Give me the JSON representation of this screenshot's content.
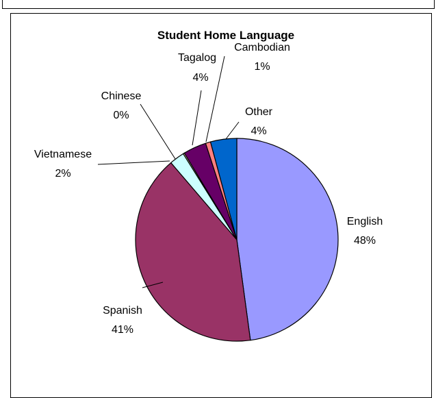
{
  "chart_data": {
    "type": "pie",
    "title": "Student Home Language",
    "slices": [
      {
        "name": "English",
        "label": "48%",
        "value": 48,
        "color": "#9999FF"
      },
      {
        "name": "Spanish",
        "label": "41%",
        "value": 41,
        "color": "#993366"
      },
      {
        "name": "Vietnamese",
        "label": "2%",
        "value": 2.4,
        "color": "#CCFFFF"
      },
      {
        "name": "Chinese",
        "label": "0%",
        "value": 0.2,
        "color": "#FFFFCC"
      },
      {
        "name": "Tagalog",
        "label": "4%",
        "value": 3.7,
        "color": "#660066"
      },
      {
        "name": "Cambodian",
        "label": "1%",
        "value": 0.8,
        "color": "#FF8080"
      },
      {
        "name": "Other",
        "label": "4%",
        "value": 4.2,
        "color": "#0066CC"
      }
    ]
  }
}
